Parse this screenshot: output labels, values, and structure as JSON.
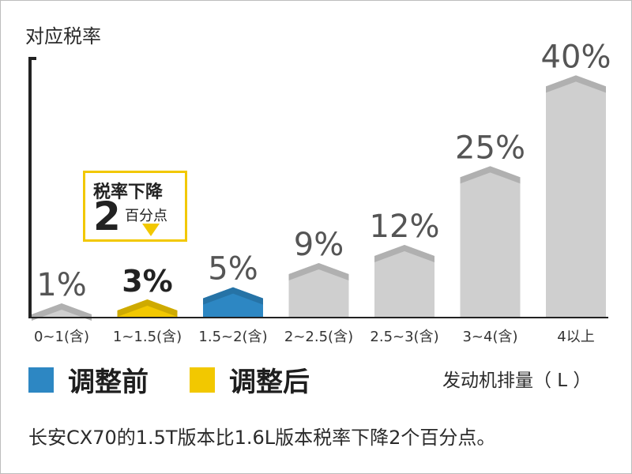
{
  "chart_data": {
    "type": "bar",
    "ylabel": "对应税率",
    "xlabel": "发动机排量（ L ）",
    "categories": [
      "0~1(含)",
      "1~1.5(含)",
      "1.5~2(含)",
      "2~2.5(含)",
      "2.5~3(含)",
      "3~4(含)",
      "4以上"
    ],
    "values": [
      1,
      3,
      5,
      9,
      12,
      25,
      40
    ],
    "value_labels": [
      "1%",
      "3%",
      "5%",
      "9%",
      "12%",
      "25%",
      "40%"
    ],
    "bar_colors": [
      "#cfcfcf",
      "#f2c800",
      "#2d87c3",
      "#cfcfcf",
      "#cfcfcf",
      "#cfcfcf",
      "#cfcfcf"
    ],
    "ylim": [
      0,
      42
    ],
    "legend": [
      {
        "label": "调整前",
        "color": "#2d87c3"
      },
      {
        "label": "调整后",
        "color": "#f2c800"
      }
    ]
  },
  "callout": {
    "title": "税率下降",
    "number": "2",
    "unit": "百分点"
  },
  "caption": "长安CX70的1.5T版本比1.6L版本税率下降2个百分点。"
}
